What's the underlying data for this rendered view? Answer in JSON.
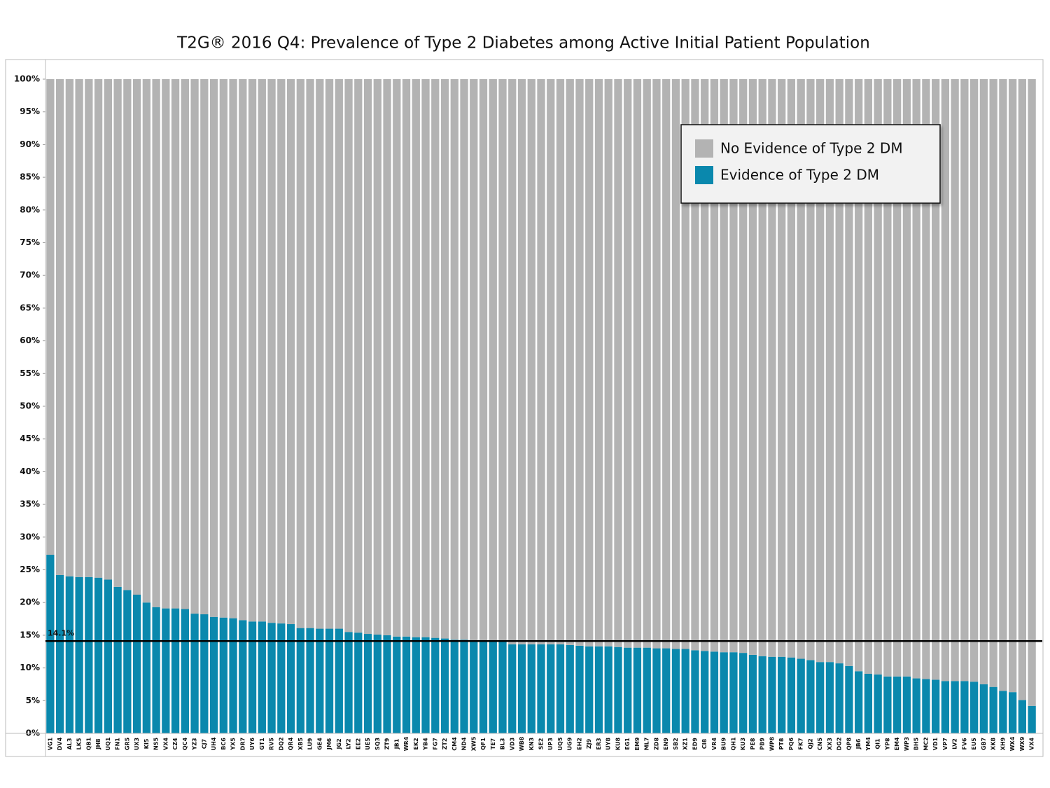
{
  "chart_data": {
    "type": "stacked_bar_100",
    "title": "T2G® 2016 Q4: Prevalence of Type 2 Diabetes among Active Initial Patient Population",
    "categories": [
      "VG1",
      "DV4",
      "AL3",
      "LK5",
      "QB1",
      "JH8",
      "UQ1",
      "FN1",
      "GR5",
      "UX3",
      "KI5",
      "NS5",
      "VX4",
      "CZ4",
      "QC4",
      "YZ3",
      "CJ7",
      "UH4",
      "BC6",
      "YX5",
      "DR7",
      "UY6",
      "GT1",
      "RV5",
      "DQ2",
      "QR4",
      "XB5",
      "LU9",
      "GE4",
      "JM6",
      "JG2",
      "LY2",
      "EE2",
      "UE5",
      "SQ3",
      "ZT9",
      "JB1",
      "WR4",
      "EK2",
      "YB4",
      "FG7",
      "ZT2",
      "CM4",
      "ND4",
      "XW5",
      "QF1",
      "TE7",
      "BL3",
      "VD3",
      "WB8",
      "KN3",
      "SE2",
      "UP3",
      "UQ5",
      "UG9",
      "EH2",
      "ZJ9",
      "ER3",
      "UY8",
      "KU8",
      "EG1",
      "EM9",
      "ML7",
      "ZD8",
      "EN9",
      "SB2",
      "XZ1",
      "ED9",
      "CI8",
      "VR4",
      "BU9",
      "QH1",
      "KU3",
      "PE8",
      "PB9",
      "WP8",
      "PT8",
      "PQ6",
      "FK7",
      "QJ2",
      "CN5",
      "XX3",
      "DG2",
      "QP8",
      "JB6",
      "YM4",
      "QI1",
      "YP8",
      "EM4",
      "WP3",
      "BH5",
      "MC2",
      "VD1",
      "VP7",
      "LV2",
      "FV6",
      "EU5",
      "GB7",
      "XK8",
      "XH9",
      "WX4",
      "WX9",
      "VX4"
    ],
    "series": [
      {
        "name": "No Evidence of Type 2 DM",
        "color": "#b3b3b3",
        "values": [
          72.7,
          75.8,
          76.0,
          76.1,
          76.1,
          76.2,
          76.5,
          77.6,
          78.1,
          78.8,
          80.0,
          80.7,
          80.9,
          80.9,
          81.0,
          81.7,
          81.8,
          82.2,
          82.3,
          82.4,
          82.7,
          82.9,
          82.9,
          83.1,
          83.2,
          83.3,
          83.9,
          83.9,
          84.0,
          84.0,
          84.0,
          84.5,
          84.6,
          84.8,
          84.9,
          85.0,
          85.2,
          85.2,
          85.3,
          85.3,
          85.4,
          85.5,
          85.7,
          85.7,
          85.8,
          85.8,
          85.9,
          85.9,
          86.4,
          86.4,
          86.4,
          86.4,
          86.4,
          86.4,
          86.5,
          86.6,
          86.7,
          86.7,
          86.7,
          86.8,
          86.9,
          86.9,
          86.9,
          87.0,
          87.0,
          87.1,
          87.1,
          87.3,
          87.4,
          87.5,
          87.6,
          87.6,
          87.7,
          88.0,
          88.2,
          88.3,
          88.3,
          88.4,
          88.6,
          88.8,
          89.1,
          89.1,
          89.3,
          89.7,
          90.5,
          90.9,
          91.0,
          91.3,
          91.3,
          91.3,
          91.6,
          91.7,
          91.8,
          92.0,
          92.0,
          92.0,
          92.1,
          92.5,
          92.9,
          93.5,
          93.7,
          94.9,
          95.8
        ]
      },
      {
        "name": "Evidence of Type 2 DM",
        "color": "#0a88ad",
        "values": [
          27.3,
          24.2,
          24.0,
          23.9,
          23.9,
          23.8,
          23.5,
          22.4,
          21.9,
          21.2,
          20.0,
          19.3,
          19.1,
          19.1,
          19.0,
          18.3,
          18.2,
          17.8,
          17.7,
          17.6,
          17.3,
          17.1,
          17.1,
          16.9,
          16.8,
          16.7,
          16.1,
          16.1,
          16.0,
          16.0,
          16.0,
          15.5,
          15.4,
          15.2,
          15.1,
          15.0,
          14.8,
          14.8,
          14.7,
          14.7,
          14.6,
          14.5,
          14.3,
          14.3,
          14.2,
          14.2,
          14.1,
          14.1,
          13.6,
          13.6,
          13.6,
          13.6,
          13.6,
          13.6,
          13.5,
          13.4,
          13.3,
          13.3,
          13.3,
          13.2,
          13.1,
          13.1,
          13.1,
          13.0,
          13.0,
          12.9,
          12.9,
          12.7,
          12.6,
          12.5,
          12.4,
          12.4,
          12.3,
          12.0,
          11.8,
          11.7,
          11.7,
          11.6,
          11.4,
          11.2,
          10.9,
          10.9,
          10.7,
          10.3,
          9.5,
          9.1,
          9.0,
          8.7,
          8.7,
          8.7,
          8.4,
          8.3,
          8.2,
          8.0,
          8.0,
          8.0,
          7.9,
          7.5,
          7.1,
          6.5,
          6.3,
          5.1,
          4.2
        ]
      }
    ],
    "reference_line": {
      "value": 14.1,
      "label": "14.1%"
    },
    "ylim": [
      0,
      100
    ],
    "yticks": [
      {
        "value": 0,
        "label": "0%"
      },
      {
        "value": 5,
        "label": "5%"
      },
      {
        "value": 10,
        "label": "10%"
      },
      {
        "value": 15,
        "label": "15%"
      },
      {
        "value": 20,
        "label": "20%"
      },
      {
        "value": 25,
        "label": "25%"
      },
      {
        "value": 30,
        "label": "30%"
      },
      {
        "value": 35,
        "label": "35%"
      },
      {
        "value": 40,
        "label": "40%"
      },
      {
        "value": 45,
        "label": "45%"
      },
      {
        "value": 50,
        "label": "50%"
      },
      {
        "value": 55,
        "label": "55%"
      },
      {
        "value": 60,
        "label": "60%"
      },
      {
        "value": 65,
        "label": "65%"
      },
      {
        "value": 70,
        "label": "70%"
      },
      {
        "value": 75,
        "label": "75%"
      },
      {
        "value": 80,
        "label": "80%"
      },
      {
        "value": 85,
        "label": "85%"
      },
      {
        "value": 90,
        "label": "90%"
      },
      {
        "value": 95,
        "label": "95%"
      },
      {
        "value": 100,
        "label": "100%"
      }
    ],
    "legend": "upper right"
  }
}
